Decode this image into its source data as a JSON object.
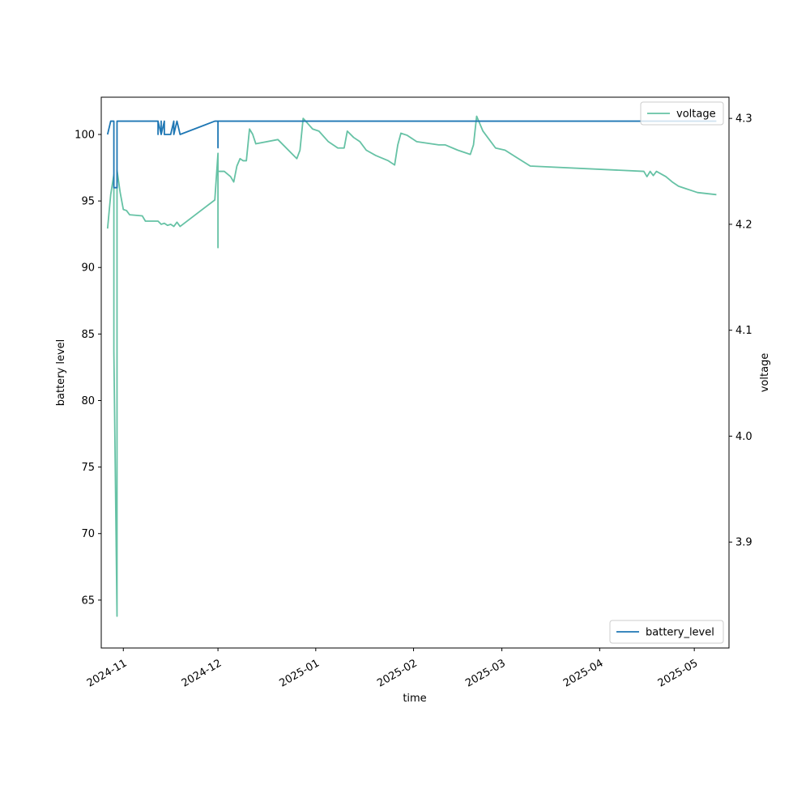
{
  "chart_data": {
    "type": "line",
    "xlabel": "time",
    "x_tick_labels": [
      "2024-11",
      "2024-12",
      "2025-01",
      "2025-02",
      "2025-03",
      "2025-04",
      "2025-05"
    ],
    "x_ticks": [
      "2024-11-01",
      "2024-12-01",
      "2025-01-01",
      "2025-02-01",
      "2025-03-01",
      "2025-04-01",
      "2025-05-01"
    ],
    "xlim": [
      "2024-10-25",
      "2025-05-12"
    ],
    "left_axis": {
      "label": "battery level",
      "ylim": [
        61.4,
        102.8
      ],
      "ticks": [
        65,
        70,
        75,
        80,
        85,
        90,
        95,
        100
      ]
    },
    "right_axis": {
      "label": "voltage",
      "ylim": [
        3.8,
        4.32
      ],
      "ticks": [
        3.9,
        4.0,
        4.1,
        4.2,
        4.3
      ],
      "tick_labels": [
        "3.9",
        "4.0",
        "4.1",
        "4.2",
        "4.3"
      ]
    },
    "series": [
      {
        "name": "battery_level",
        "axis": "left",
        "color": "#1f77b4",
        "points": [
          [
            "2024-10-27",
            100
          ],
          [
            "2024-10-28",
            101
          ],
          [
            "2024-10-29",
            101
          ],
          [
            "2024-10-29",
            96
          ],
          [
            "2024-10-30",
            96
          ],
          [
            "2024-10-30",
            101
          ],
          [
            "2024-11-12",
            101
          ],
          [
            "2024-11-12",
            100
          ],
          [
            "2024-11-12",
            101
          ],
          [
            "2024-11-13",
            100
          ],
          [
            "2024-11-13",
            101
          ],
          [
            "2024-11-13",
            100
          ],
          [
            "2024-11-14",
            101
          ],
          [
            "2024-11-14",
            100
          ],
          [
            "2024-11-16",
            100
          ],
          [
            "2024-11-17",
            101
          ],
          [
            "2024-11-17",
            100
          ],
          [
            "2024-11-18",
            101
          ],
          [
            "2024-11-19",
            100
          ],
          [
            "2024-11-30",
            101
          ],
          [
            "2024-12-01",
            101
          ],
          [
            "2024-12-01",
            99
          ],
          [
            "2024-12-01",
            101
          ],
          [
            "2025-05-08",
            101
          ]
        ]
      },
      {
        "name": "voltage",
        "axis": "right",
        "color": "#66c2a5",
        "points": [
          [
            "2024-10-27",
            4.196
          ],
          [
            "2024-10-28",
            4.228
          ],
          [
            "2024-10-29",
            4.247
          ],
          [
            "2024-10-29",
            4.08
          ],
          [
            "2024-10-30",
            3.83
          ],
          [
            "2024-10-30",
            4.251
          ],
          [
            "2024-10-31",
            4.23
          ],
          [
            "2024-11-01",
            4.214
          ],
          [
            "2024-11-02",
            4.213
          ],
          [
            "2024-11-03",
            4.209
          ],
          [
            "2024-11-07",
            4.208
          ],
          [
            "2024-11-08",
            4.203
          ],
          [
            "2024-11-12",
            4.203
          ],
          [
            "2024-11-13",
            4.2
          ],
          [
            "2024-11-14",
            4.201
          ],
          [
            "2024-11-15",
            4.199
          ],
          [
            "2024-11-16",
            4.2
          ],
          [
            "2024-11-17",
            4.198
          ],
          [
            "2024-11-18",
            4.202
          ],
          [
            "2024-11-19",
            4.198
          ],
          [
            "2024-11-30",
            4.223
          ],
          [
            "2024-12-01",
            4.267
          ],
          [
            "2024-12-01",
            4.178
          ],
          [
            "2024-12-01",
            4.25
          ],
          [
            "2024-12-03",
            4.25
          ],
          [
            "2024-12-05",
            4.245
          ],
          [
            "2024-12-06",
            4.24
          ],
          [
            "2024-12-07",
            4.255
          ],
          [
            "2024-12-08",
            4.262
          ],
          [
            "2024-12-09",
            4.26
          ],
          [
            "2024-12-10",
            4.26
          ],
          [
            "2024-12-11",
            4.29
          ],
          [
            "2024-12-12",
            4.285
          ],
          [
            "2024-12-13",
            4.276
          ],
          [
            "2024-12-20",
            4.28
          ],
          [
            "2024-12-26",
            4.262
          ],
          [
            "2024-12-27",
            4.27
          ],
          [
            "2024-12-28",
            4.3
          ],
          [
            "2024-12-31",
            4.29
          ],
          [
            "2025-01-02",
            4.288
          ],
          [
            "2025-01-05",
            4.278
          ],
          [
            "2025-01-08",
            4.272
          ],
          [
            "2025-01-10",
            4.272
          ],
          [
            "2025-01-11",
            4.288
          ],
          [
            "2025-01-13",
            4.282
          ],
          [
            "2025-01-15",
            4.278
          ],
          [
            "2025-01-17",
            4.27
          ],
          [
            "2025-01-20",
            4.265
          ],
          [
            "2025-01-24",
            4.26
          ],
          [
            "2025-01-26",
            4.256
          ],
          [
            "2025-01-27",
            4.275
          ],
          [
            "2025-01-28",
            4.286
          ],
          [
            "2025-01-30",
            4.284
          ],
          [
            "2025-02-02",
            4.278
          ],
          [
            "2025-02-09",
            4.275
          ],
          [
            "2025-02-11",
            4.275
          ],
          [
            "2025-02-15",
            4.27
          ],
          [
            "2025-02-17",
            4.268
          ],
          [
            "2025-02-19",
            4.266
          ],
          [
            "2025-02-20",
            4.275
          ],
          [
            "2025-02-21",
            4.302
          ],
          [
            "2025-02-22",
            4.295
          ],
          [
            "2025-02-23",
            4.288
          ],
          [
            "2025-02-25",
            4.28
          ],
          [
            "2025-02-27",
            4.272
          ],
          [
            "2025-03-02",
            4.27
          ],
          [
            "2025-03-10",
            4.255
          ],
          [
            "2025-04-15",
            4.25
          ],
          [
            "2025-04-16",
            4.245
          ],
          [
            "2025-04-17",
            4.25
          ],
          [
            "2025-04-18",
            4.246
          ],
          [
            "2025-04-19",
            4.25
          ],
          [
            "2025-04-22",
            4.245
          ],
          [
            "2025-04-24",
            4.24
          ],
          [
            "2025-04-26",
            4.236
          ],
          [
            "2025-04-28",
            4.234
          ],
          [
            "2025-04-30",
            4.232
          ],
          [
            "2025-05-02",
            4.23
          ],
          [
            "2025-05-08",
            4.228
          ]
        ]
      }
    ],
    "legends": [
      {
        "series": "voltage",
        "placement": "top-right"
      },
      {
        "series": "battery_level",
        "placement": "bottom-right"
      }
    ],
    "grid": false
  }
}
